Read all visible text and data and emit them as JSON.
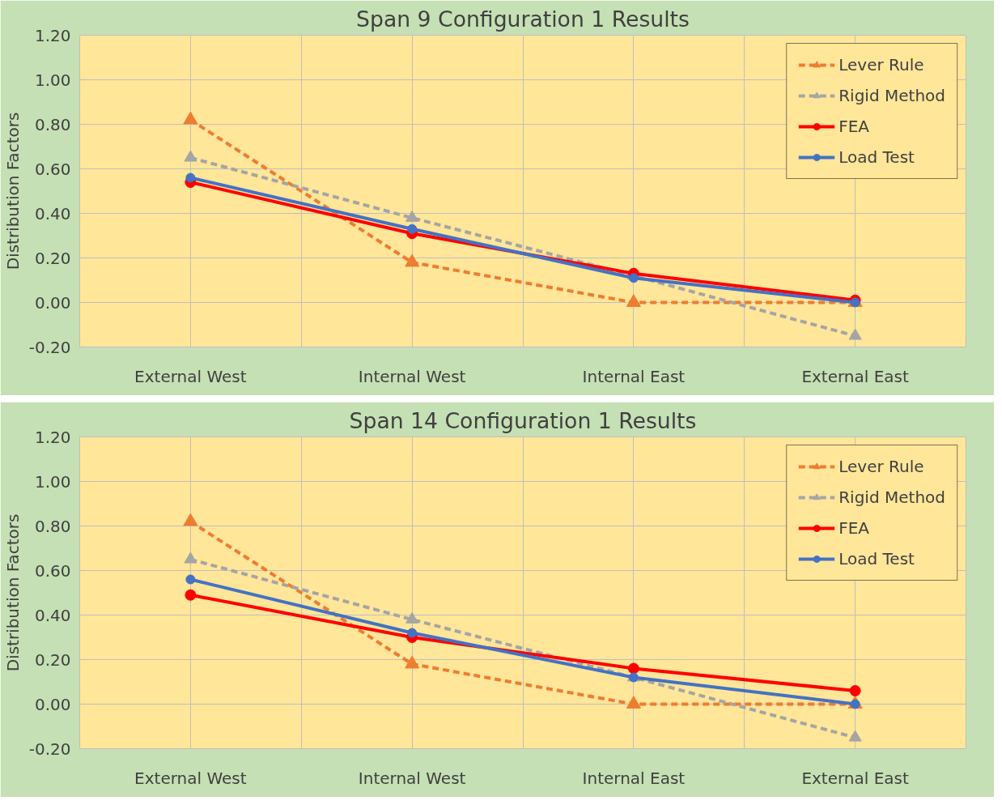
{
  "chart_data": [
    {
      "type": "line",
      "title": "Span 9 Configuration 1 Results",
      "ylabel": "Distribution Factors",
      "categories": [
        "External West",
        "Internal West",
        "Internal East",
        "External East"
      ],
      "ylim": [
        -0.2,
        1.2
      ],
      "yticks": [
        {
          "value": -0.2,
          "label": "-0.20"
        },
        {
          "value": 0,
          "label": "0.00"
        },
        {
          "value": 0.2,
          "label": "0.20"
        },
        {
          "value": 0.4,
          "label": "0.40"
        },
        {
          "value": 0.6,
          "label": "0.60"
        },
        {
          "value": 0.8,
          "label": "0.80"
        },
        {
          "value": 1.0,
          "label": "1.00"
        },
        {
          "value": 1.2,
          "label": "1.20"
        }
      ],
      "grid": true,
      "legend": "top right",
      "series": [
        {
          "name": "Lever Rule",
          "color": "#ed7d31",
          "marker": "triangle",
          "line_style": "dashed",
          "values": [
            0.82,
            0.18,
            0.0,
            0.0
          ]
        },
        {
          "name": "Rigid Method",
          "color": "#a5a5a5",
          "marker": "triangle",
          "line_style": "dashed",
          "values": [
            0.65,
            0.38,
            0.12,
            -0.15
          ]
        },
        {
          "name": "FEA",
          "color": "#ff0000",
          "marker": "circle",
          "line_style": "solid",
          "values": [
            0.54,
            0.31,
            0.13,
            0.01
          ]
        },
        {
          "name": "Load Test",
          "color": "#4472c4",
          "marker": "circle",
          "line_style": "solid",
          "values": [
            0.56,
            0.33,
            0.11,
            0.0
          ]
        }
      ]
    },
    {
      "type": "line",
      "title": "Span 14 Configuration 1 Results",
      "ylabel": "Distribution Factors",
      "categories": [
        "External West",
        "Internal West",
        "Internal East",
        "External East"
      ],
      "ylim": [
        -0.2,
        1.2
      ],
      "yticks": [
        {
          "value": -0.2,
          "label": "-0.20"
        },
        {
          "value": 0,
          "label": "0.00"
        },
        {
          "value": 0.2,
          "label": "0.20"
        },
        {
          "value": 0.4,
          "label": "0.40"
        },
        {
          "value": 0.6,
          "label": "0.60"
        },
        {
          "value": 0.8,
          "label": "0.80"
        },
        {
          "value": 1.0,
          "label": "1.00"
        },
        {
          "value": 1.2,
          "label": "1.20"
        }
      ],
      "grid": true,
      "legend": "top right",
      "series": [
        {
          "name": "Lever Rule",
          "color": "#ed7d31",
          "marker": "triangle",
          "line_style": "dashed",
          "values": [
            0.82,
            0.18,
            0.0,
            0.0
          ]
        },
        {
          "name": "Rigid Method",
          "color": "#a5a5a5",
          "marker": "triangle",
          "line_style": "dashed",
          "values": [
            0.65,
            0.38,
            0.12,
            -0.15
          ]
        },
        {
          "name": "FEA",
          "color": "#ff0000",
          "marker": "circle",
          "line_style": "solid",
          "values": [
            0.49,
            0.3,
            0.16,
            0.06
          ]
        },
        {
          "name": "Load Test",
          "color": "#4472c4",
          "marker": "circle",
          "line_style": "solid",
          "values": [
            0.56,
            0.32,
            0.12,
            0.0
          ]
        }
      ]
    }
  ]
}
